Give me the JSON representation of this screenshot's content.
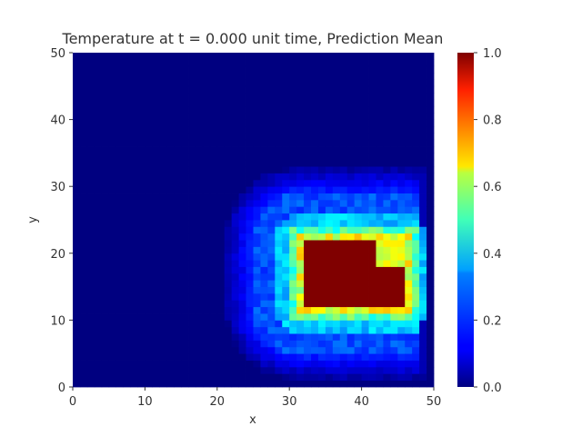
{
  "chart_data": {
    "type": "heatmap",
    "title": "Temperature at t = 0.000 unit time, Prediction Mean",
    "xlabel": "x",
    "ylabel": "y",
    "xlim": [
      0,
      50
    ],
    "ylim": [
      0,
      50
    ],
    "x_ticks": [
      "0",
      "10",
      "20",
      "30",
      "40",
      "50"
    ],
    "y_ticks": [
      "0",
      "10",
      "20",
      "30",
      "40",
      "50"
    ],
    "colormap": "jet",
    "colorbar": {
      "range": [
        0.0,
        1.0
      ],
      "ticks": [
        "0.0",
        "0.2",
        "0.4",
        "0.6",
        "0.8",
        "1.0"
      ]
    },
    "grid": false,
    "field_description": {
      "background_value": 0.0,
      "hot_region": {
        "x": [
          32,
          46
        ],
        "y": [
          12,
          22
        ],
        "value": 1.0
      },
      "notch": {
        "x": [
          42,
          46
        ],
        "y": [
          18,
          22
        ],
        "value": 0.6
      },
      "ring_value_inner": 0.55,
      "halo_outer_value": 0.15
    }
  }
}
